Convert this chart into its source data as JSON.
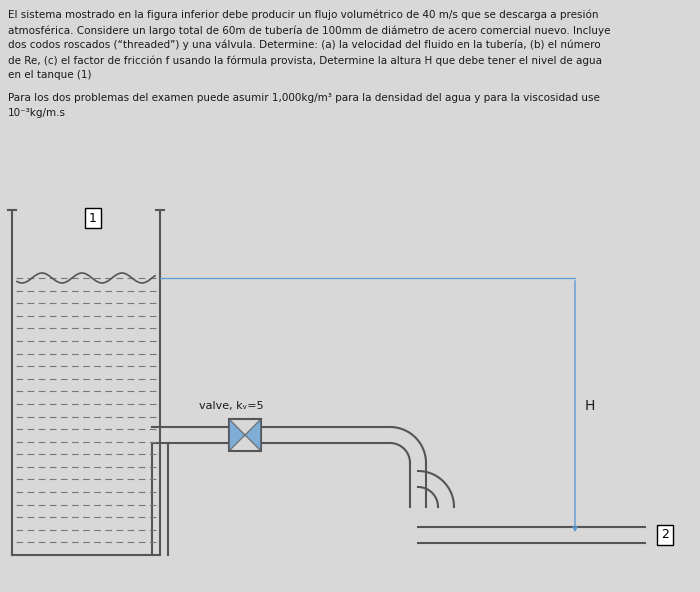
{
  "bg_color": "#d8d8d8",
  "pipe_color": "#555555",
  "blue_color": "#5b9bd5",
  "text_color": "#1a1a1a",
  "hatch_color": "#888888",
  "water_line_color": "#5b9bd5",
  "title_lines": [
    "El sistema mostrado en la figura inferior debe producir un flujo volumétrico de 40 m/s que se descarga a presión",
    "atmosférica. Considere un largo total de 60m de tubería de 100mm de diámetro de acero comercial nuevo. Incluye",
    "dos codos roscados (“threaded”) y una válvula. Determine: (a) la velocidad del fluido en la tubería, (b) el número",
    "de Re, (c) el factor de fricción f usando la fórmula provista, Determine la altura H que debe tener el nivel de agua",
    "en el tanque (1)"
  ],
  "subtitle_lines": [
    "Para los dos problemas del examen puede asumir 1,000kg/m³ para la densidad del agua y para la viscosidad use",
    "10⁻³kg/m.s"
  ],
  "valve_label": "valve, kᵥ=5",
  "H_label": "H",
  "label_1": "1",
  "label_2": "2"
}
